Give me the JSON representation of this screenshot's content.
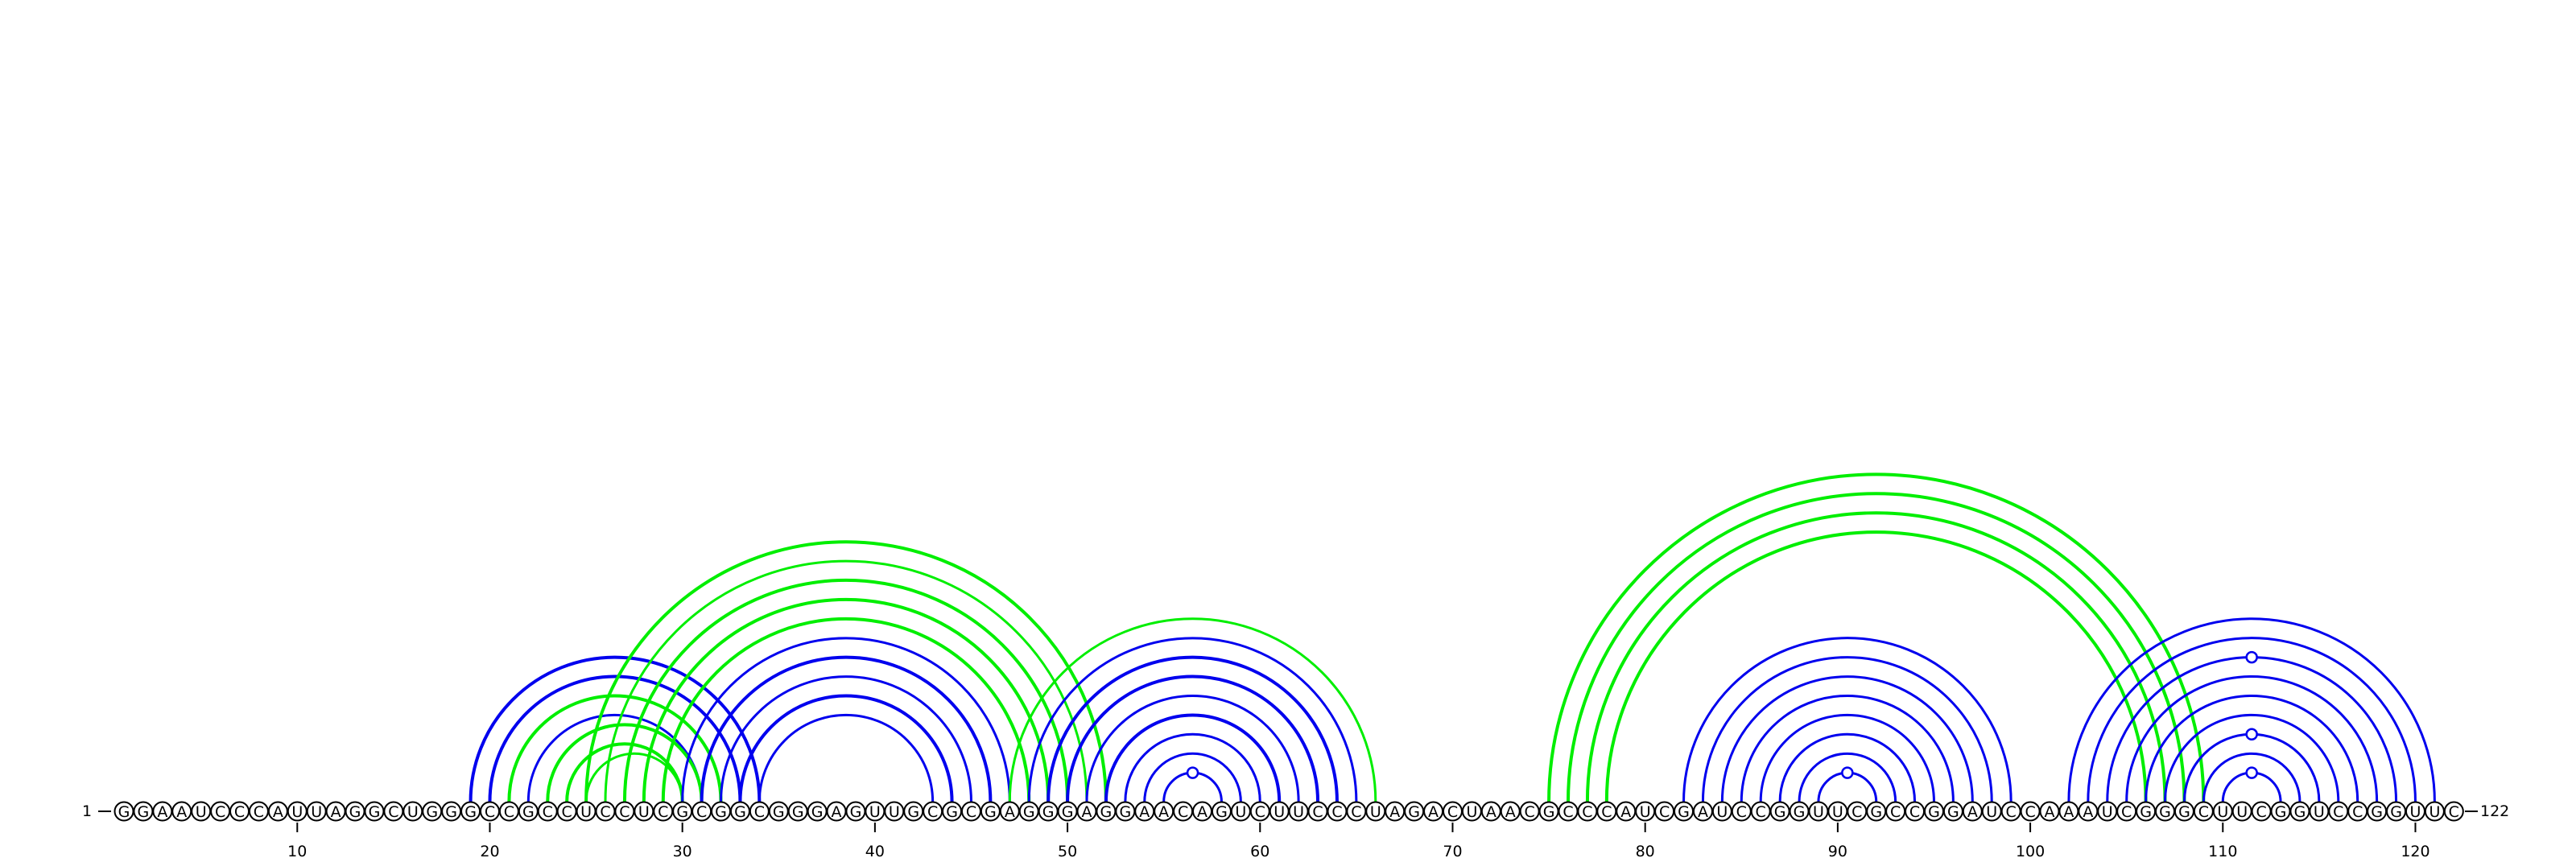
{
  "sequence": "GGAAUCCCAUUAGGCUGGGCCGCCUCCUCGCGGCGGGAGUUGCGCGAGGGAGGAACAGUCUUCCCUAGACUAACGCCCAUCGAUCCGGUUCGCCGGAUCCAAAUCGGGCUUCGGUCCGGUUC",
  "labels": {
    "start": "1",
    "end": "122"
  },
  "ticks": [
    {
      "pos": 10,
      "label": "10"
    },
    {
      "pos": 20,
      "label": "20"
    },
    {
      "pos": 30,
      "label": "30"
    },
    {
      "pos": 40,
      "label": "40"
    },
    {
      "pos": 50,
      "label": "50"
    },
    {
      "pos": 60,
      "label": "60"
    },
    {
      "pos": 70,
      "label": "70"
    },
    {
      "pos": 80,
      "label": "80"
    },
    {
      "pos": 90,
      "label": "90"
    },
    {
      "pos": 100,
      "label": "100"
    },
    {
      "pos": 110,
      "label": "110"
    },
    {
      "pos": 120,
      "label": "120"
    }
  ],
  "colors": {
    "blue": "#0000ee",
    "green": "#00ee00",
    "line": "#000000"
  },
  "arcs": [
    {
      "i": 19,
      "j": 34,
      "color": "blue",
      "w": 4
    },
    {
      "i": 20,
      "j": 33,
      "color": "blue",
      "w": 4
    },
    {
      "i": 21,
      "j": 32,
      "color": "blue",
      "w": 3
    },
    {
      "i": 22,
      "j": 31,
      "color": "blue",
      "w": 3
    },
    {
      "i": 21,
      "j": 32,
      "color": "green",
      "w": 4
    },
    {
      "i": 23,
      "j": 31,
      "color": "green",
      "w": 4
    },
    {
      "i": 24,
      "j": 30,
      "color": "green",
      "w": 4
    },
    {
      "i": 25,
      "j": 30,
      "color": "green",
      "w": 3
    },
    {
      "i": 25,
      "j": 52,
      "color": "green",
      "w": 4
    },
    {
      "i": 26,
      "j": 51,
      "color": "green",
      "w": 3
    },
    {
      "i": 27,
      "j": 50,
      "color": "green",
      "w": 4
    },
    {
      "i": 28,
      "j": 49,
      "color": "green",
      "w": 4
    },
    {
      "i": 29,
      "j": 48,
      "color": "green",
      "w": 4
    },
    {
      "i": 30,
      "j": 47,
      "color": "blue",
      "w": 3
    },
    {
      "i": 31,
      "j": 46,
      "color": "blue",
      "w": 4
    },
    {
      "i": 32,
      "j": 45,
      "color": "blue",
      "w": 3
    },
    {
      "i": 33,
      "j": 44,
      "color": "blue",
      "w": 4
    },
    {
      "i": 34,
      "j": 43,
      "color": "blue",
      "w": 3
    },
    {
      "i": 47,
      "j": 66,
      "color": "green",
      "w": 3
    },
    {
      "i": 48,
      "j": 65,
      "color": "blue",
      "w": 3
    },
    {
      "i": 49,
      "j": 64,
      "color": "blue",
      "w": 4
    },
    {
      "i": 50,
      "j": 63,
      "color": "blue",
      "w": 4
    },
    {
      "i": 51,
      "j": 62,
      "color": "blue",
      "w": 3
    },
    {
      "i": 52,
      "j": 61,
      "color": "blue",
      "w": 4
    },
    {
      "i": 53,
      "j": 60,
      "color": "blue",
      "w": 3
    },
    {
      "i": 54,
      "j": 59,
      "color": "blue",
      "w": 3
    },
    {
      "i": 55,
      "j": 58,
      "color": "blue",
      "w": 3
    },
    {
      "i": 75,
      "j": 109,
      "color": "green",
      "w": 4
    },
    {
      "i": 76,
      "j": 108,
      "color": "green",
      "w": 4
    },
    {
      "i": 77,
      "j": 107,
      "color": "green",
      "w": 4
    },
    {
      "i": 78,
      "j": 106,
      "color": "green",
      "w": 4
    },
    {
      "i": 82,
      "j": 99,
      "color": "blue",
      "w": 3
    },
    {
      "i": 83,
      "j": 98,
      "color": "blue",
      "w": 3
    },
    {
      "i": 84,
      "j": 97,
      "color": "blue",
      "w": 3
    },
    {
      "i": 85,
      "j": 96,
      "color": "blue",
      "w": 3
    },
    {
      "i": 86,
      "j": 95,
      "color": "blue",
      "w": 3
    },
    {
      "i": 87,
      "j": 94,
      "color": "blue",
      "w": 3
    },
    {
      "i": 88,
      "j": 93,
      "color": "blue",
      "w": 3
    },
    {
      "i": 89,
      "j": 92,
      "color": "blue",
      "w": 3
    },
    {
      "i": 102,
      "j": 121,
      "color": "blue",
      "w": 3
    },
    {
      "i": 103,
      "j": 120,
      "color": "blue",
      "w": 3
    },
    {
      "i": 104,
      "j": 119,
      "color": "blue",
      "w": 3
    },
    {
      "i": 105,
      "j": 118,
      "color": "blue",
      "w": 3
    },
    {
      "i": 106,
      "j": 117,
      "color": "blue",
      "w": 3
    },
    {
      "i": 107,
      "j": 116,
      "color": "blue",
      "w": 3
    },
    {
      "i": 108,
      "j": 115,
      "color": "blue",
      "w": 3
    },
    {
      "i": 109,
      "j": 114,
      "color": "blue",
      "w": 3
    },
    {
      "i": 110,
      "j": 113,
      "color": "blue",
      "w": 3
    }
  ],
  "markers": [
    {
      "i": 55,
      "j": 58
    },
    {
      "i": 89,
      "j": 92
    },
    {
      "i": 110,
      "j": 113
    },
    {
      "i": 108,
      "j": 115
    },
    {
      "i": 104,
      "j": 119
    }
  ]
}
